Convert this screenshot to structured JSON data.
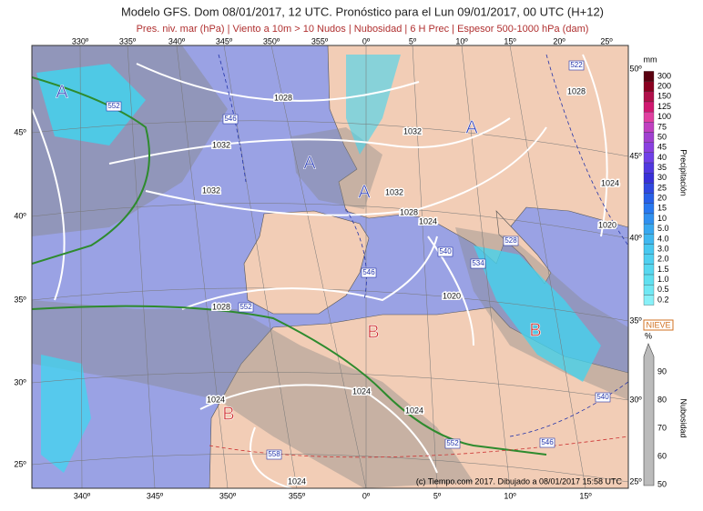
{
  "header": {
    "title": "Modelo GFS. Dom 08/01/2017, 12 UTC. Pronóstico para el Lun 09/01/2017, 00 UTC (H+12)",
    "subtitle": "Pres. niv. mar (hPa) | Viento a 10m > 10 Nudos | Nubosidad | 6 H Prec | Espesor 500-1000 hPa (dam)"
  },
  "map": {
    "lon_top": [
      "330º",
      "335º",
      "340º",
      "345º",
      "350º",
      "355º",
      "0º",
      "5º",
      "10º",
      "15º",
      "20º",
      "25º"
    ],
    "lon_bottom": [
      "340º",
      "345º",
      "350º",
      "355º",
      "0º",
      "5º",
      "10º",
      "15º"
    ],
    "lat_left": [
      "45º",
      "40º",
      "35º",
      "30º",
      "25º"
    ],
    "lat_right": [
      "50º",
      "45º",
      "40º",
      "35º",
      "30º",
      "25º"
    ],
    "isobars": [
      "1028",
      "1028",
      "1032",
      "1032",
      "1032",
      "1032",
      "1028",
      "1024",
      "1024",
      "1020",
      "1020",
      "1028",
      "1024",
      "1024",
      "1024",
      "1024"
    ],
    "centers": [
      "A",
      "A",
      "A",
      "A",
      "B",
      "B",
      "B"
    ],
    "thickness": [
      "552",
      "546",
      "546",
      "540",
      "534",
      "528",
      "522",
      "552",
      "558",
      "552",
      "546",
      "540"
    ]
  },
  "legend": {
    "precip_unit": "mm",
    "precip_levels": [
      "300",
      "200",
      "150",
      "125",
      "100",
      "75",
      "50",
      "45",
      "40",
      "35",
      "30",
      "25",
      "20",
      "15",
      "10",
      "5.0",
      "4.0",
      "3.0",
      "2.0",
      "1.5",
      "1.0",
      "0.5",
      "0.2"
    ],
    "precip_title": "Precipitación",
    "snow": "NIEVE",
    "cloud_unit": "%",
    "cloud_levels": [
      "90",
      "80",
      "70",
      "60",
      "50"
    ],
    "cloud_title": "Nubosidad"
  },
  "footer": "(c) Tiempo.com 2017. Dibujado a 08/01/2017 15:58 UTC"
}
